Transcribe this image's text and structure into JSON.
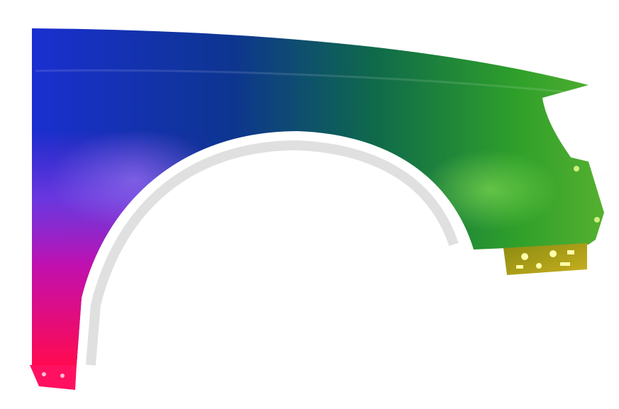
{
  "image": {
    "subject": "car-front-fender",
    "background_color": "#ffffff",
    "gradient_colors": {
      "top_left": "#1a2fc8",
      "top_mid": "#0b3a8a",
      "right": "#2fa32a",
      "lower_right": "#6a8a10",
      "bottom_left": "#ff0a5a",
      "mid_left": "#8a2be2",
      "bracket": "#a8a010"
    }
  }
}
